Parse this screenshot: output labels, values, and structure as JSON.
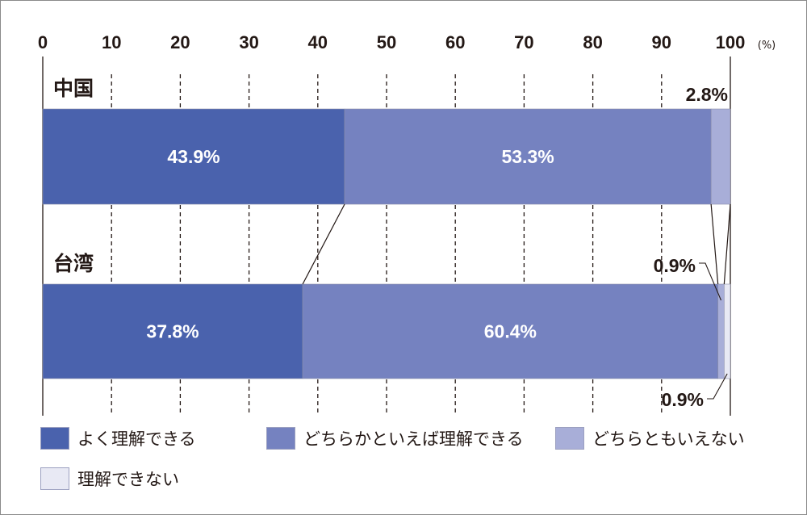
{
  "chart_data": {
    "type": "bar",
    "orientation": "horizontal",
    "stacked": true,
    "x_ticks": [
      "0",
      "10",
      "20",
      "30",
      "40",
      "50",
      "60",
      "70",
      "80",
      "90",
      "100"
    ],
    "x_unit": "(%)",
    "xlim": [
      0,
      100
    ],
    "categories": [
      "中国",
      "台湾"
    ],
    "series": [
      {
        "name": "よく理解できる",
        "values": [
          43.9,
          37.8
        ],
        "labels": [
          "43.9%",
          "37.8%"
        ],
        "color": "#4a62ad"
      },
      {
        "name": "どちらかといえば理解できる",
        "values": [
          53.3,
          60.4
        ],
        "labels": [
          "53.3%",
          "60.4%"
        ],
        "color": "#7582c0"
      },
      {
        "name": "どちらともいえない",
        "values": [
          2.8,
          0.9
        ],
        "labels": [
          "2.8%",
          "0.9%"
        ],
        "color": "#a8aed8"
      },
      {
        "name": "理解できない",
        "values": [
          0,
          0.9
        ],
        "labels": [
          "",
          "0.9%"
        ],
        "color": "#e8e9f4"
      }
    ],
    "grid": true,
    "legend_position": "bottom"
  }
}
